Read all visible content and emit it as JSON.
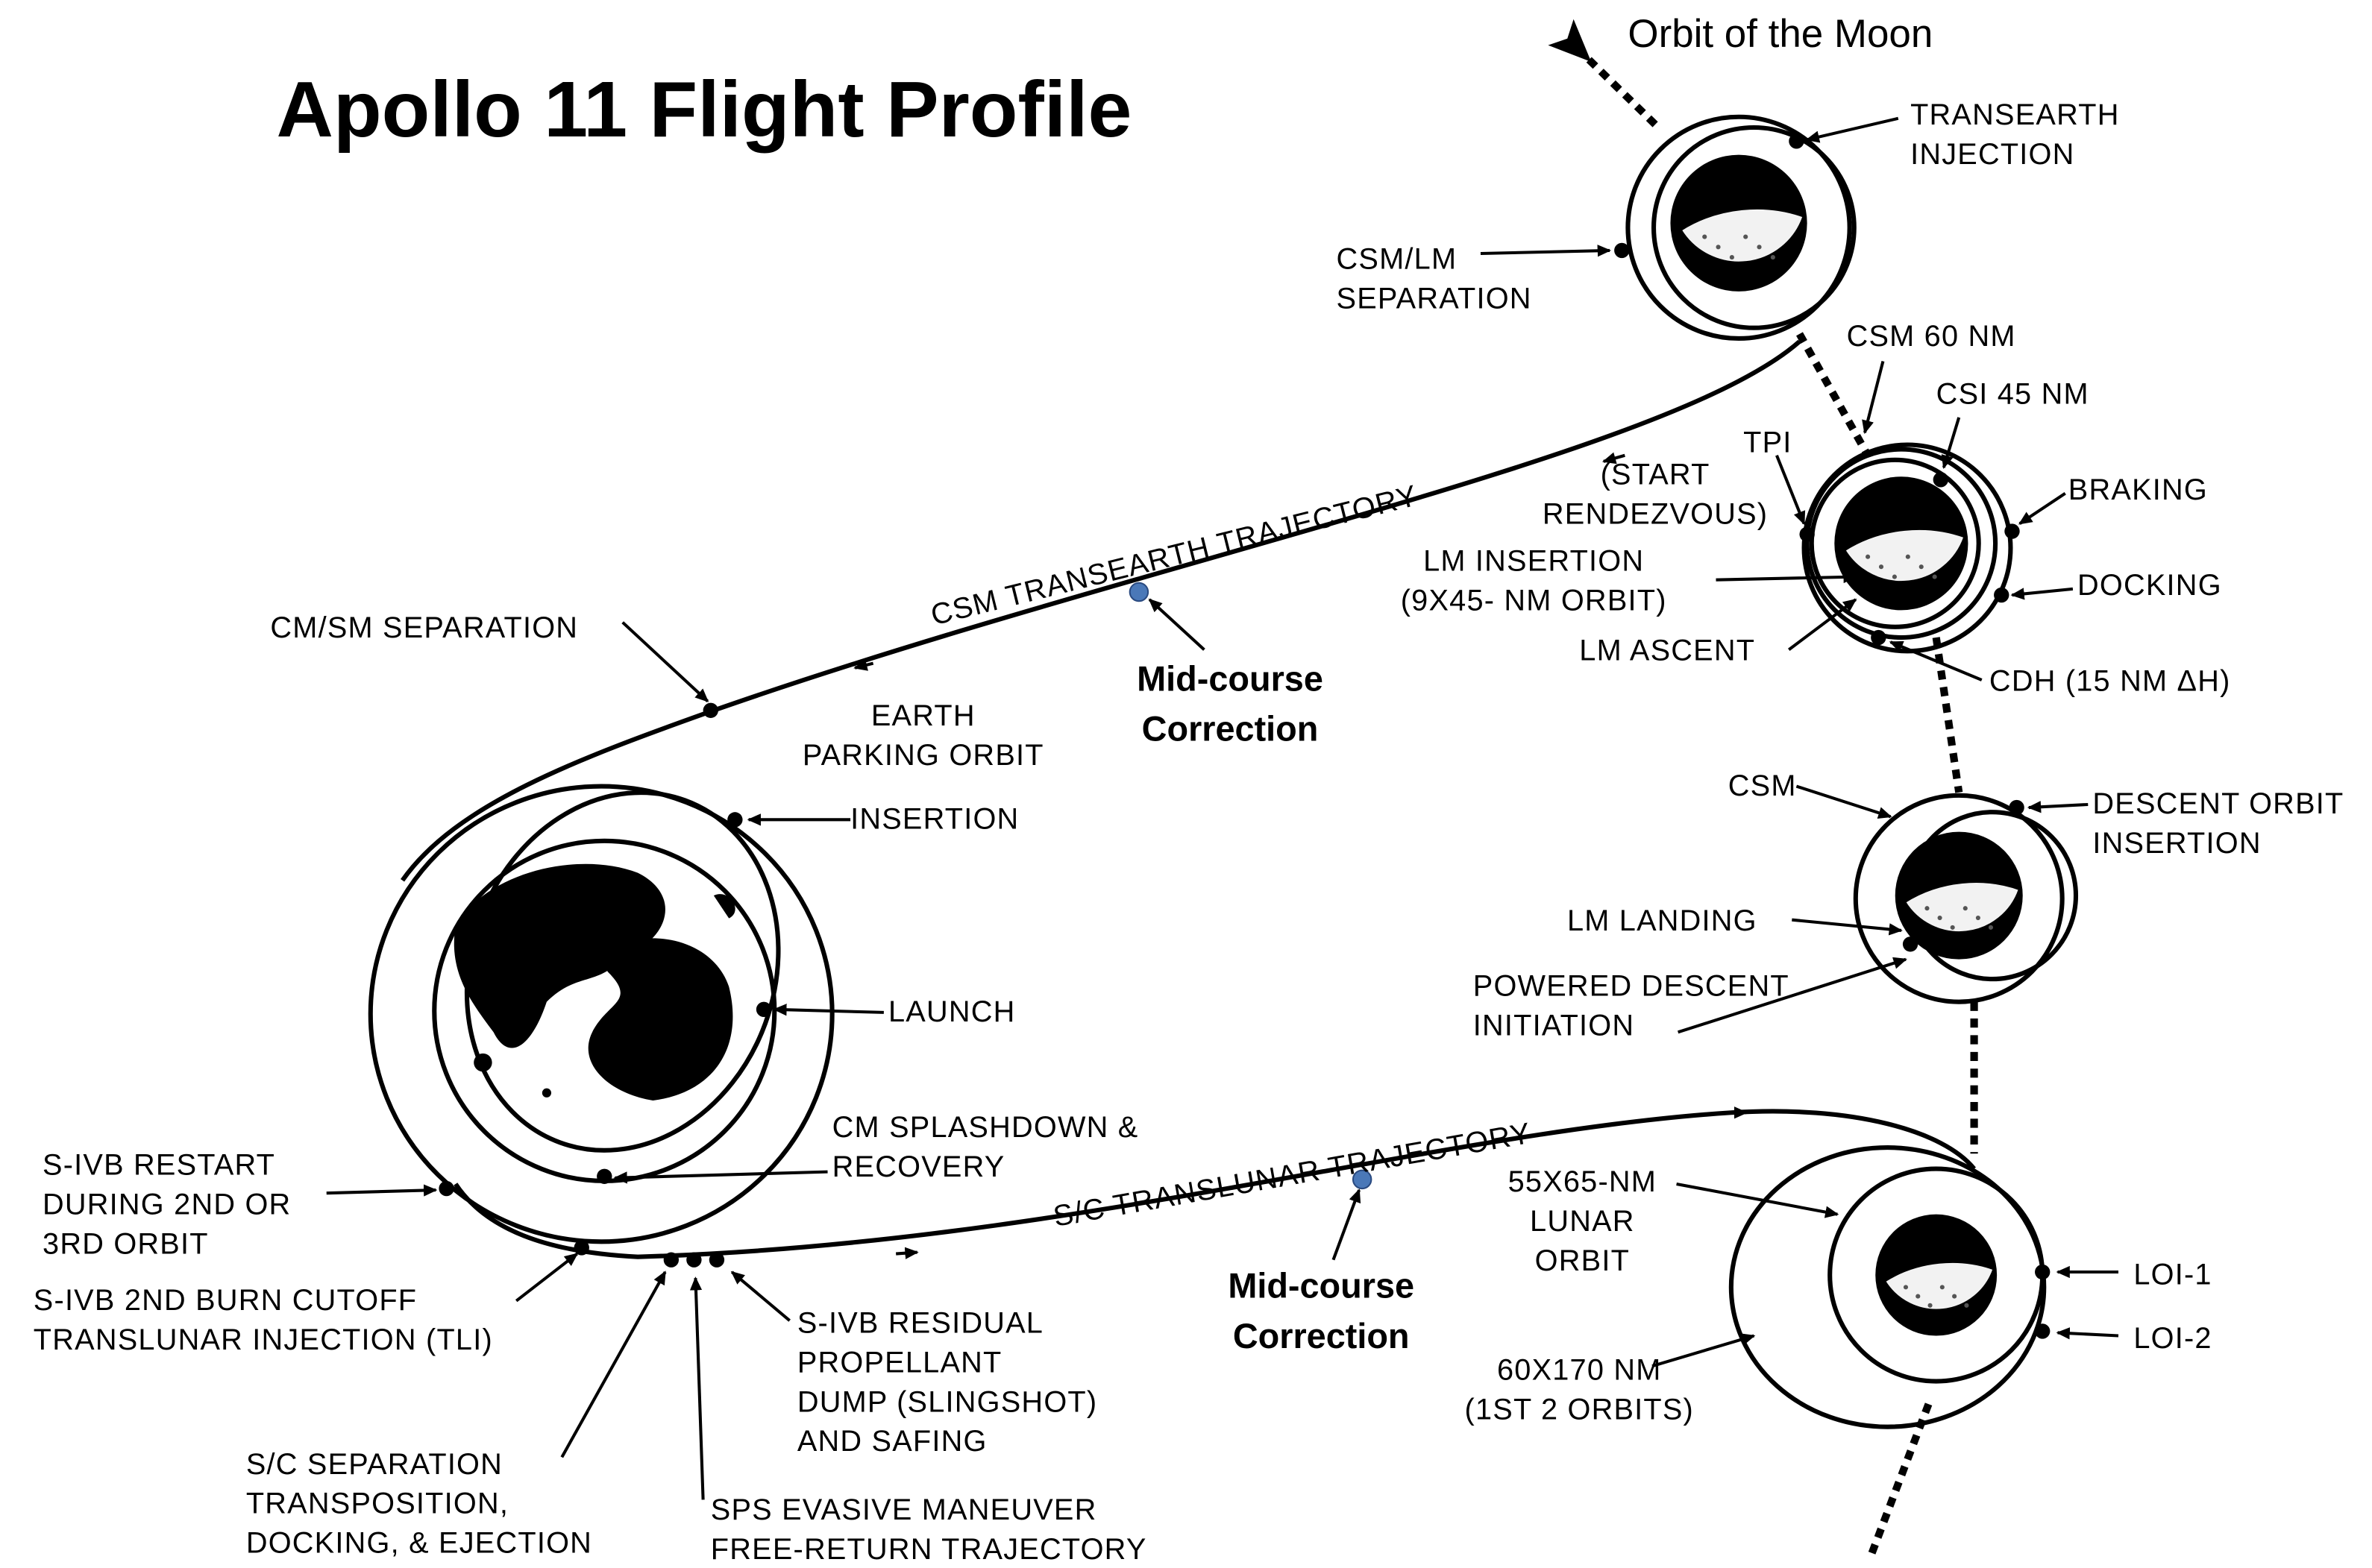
{
  "title": "Apollo 11 Flight Profile",
  "labels": [
    {
      "lines": [
        "Orbit of the Moon"
      ]
    },
    {
      "lines": [
        "TRANSEARTH",
        "INJECTION"
      ]
    },
    {
      "lines": [
        "CSM/LM",
        "SEPARATION"
      ]
    },
    {
      "lines": [
        "CSM 60 NM"
      ]
    },
    {
      "lines": [
        "CSI 45 NM"
      ]
    },
    {
      "lines": [
        "TPI"
      ]
    },
    {
      "lines": [
        "(START",
        "RENDEZVOUS)"
      ]
    },
    {
      "lines": [
        "BRAKING"
      ]
    },
    {
      "lines": [
        "LM INSERTION",
        "(9X45- NM ORBIT)"
      ]
    },
    {
      "lines": [
        "DOCKING"
      ]
    },
    {
      "lines": [
        "LM ASCENT"
      ]
    },
    {
      "lines": [
        "CDH (15 NM ΔH)"
      ]
    },
    {
      "lines": [
        "CM/SM SEPARATION"
      ]
    },
    {
      "lines": [
        "CSM TRANSEARTH TRAJECTORY"
      ]
    },
    {
      "lines": [
        "Mid-course",
        "Correction"
      ]
    },
    {
      "lines": [
        "EARTH",
        "PARKING ORBIT"
      ]
    },
    {
      "lines": [
        "INSERTION"
      ]
    },
    {
      "lines": [
        "CSM"
      ]
    },
    {
      "lines": [
        "DESCENT ORBIT",
        "INSERTION"
      ]
    },
    {
      "lines": [
        "LM LANDING"
      ]
    },
    {
      "lines": [
        "POWERED DESCENT",
        "INITIATION"
      ]
    },
    {
      "lines": [
        "LAUNCH"
      ]
    },
    {
      "lines": [
        "CM SPLASHDOWN &",
        "RECOVERY"
      ]
    },
    {
      "lines": [
        "S/C TRANSLUNAR TRAJECTORY"
      ]
    },
    {
      "lines": [
        "S-IVB RESTART",
        "DURING 2ND OR",
        "3RD ORBIT"
      ]
    },
    {
      "lines": [
        "55X65-NM",
        "LUNAR",
        "ORBIT"
      ]
    },
    {
      "lines": [
        "Mid-course",
        "Correction"
      ]
    },
    {
      "lines": [
        "LOI-1"
      ]
    },
    {
      "lines": [
        "LOI-2"
      ]
    },
    {
      "lines": [
        "S-IVB 2ND BURN CUTOFF",
        "TRANSLUNAR INJECTION (TLI)"
      ]
    },
    {
      "lines": [
        "S-IVB RESIDUAL",
        "PROPELLANT",
        "DUMP (SLINGSHOT)",
        "AND SAFING"
      ]
    },
    {
      "lines": [
        "60X170 NM",
        "(1ST  2  ORBITS)"
      ]
    },
    {
      "lines": [
        "S/C SEPARATION",
        "TRANSPOSITION,",
        "DOCKING, & EJECTION"
      ]
    },
    {
      "lines": [
        "SPS EVASIVE MANEUVER",
        "FREE-RETURN TRAJECTORY"
      ]
    }
  ]
}
